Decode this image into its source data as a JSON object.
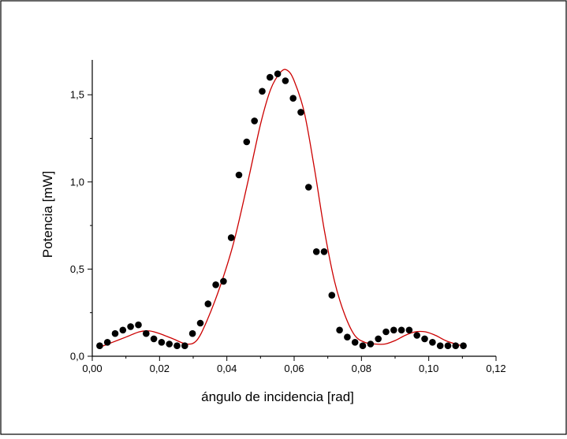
{
  "chart_data": {
    "type": "scatter",
    "title": "",
    "xlabel": "ángulo de incidencia [rad]",
    "ylabel": "Potencia [mW]",
    "xlim": [
      0,
      0.12
    ],
    "ylim": [
      0,
      1.7
    ],
    "x_ticks": [
      0.0,
      0.02,
      0.04,
      0.06,
      0.08,
      0.1,
      0.12
    ],
    "x_tick_labels": [
      "0,00",
      "0,02",
      "0,04",
      "0,06",
      "0,08",
      "0,10",
      "0,12"
    ],
    "y_ticks": [
      0.0,
      0.5,
      1.0,
      1.5
    ],
    "y_tick_labels": [
      "0,0",
      "0,5",
      "1,0",
      "1,5"
    ],
    "grid": false,
    "colors": {
      "points": "#000000",
      "fit": "#cc0000",
      "axes": "#000000"
    },
    "series": [
      {
        "kind": "points",
        "x": [
          0.0022,
          0.0045,
          0.0068,
          0.0091,
          0.0114,
          0.0137,
          0.016,
          0.0183,
          0.0206,
          0.0229,
          0.0252,
          0.0275,
          0.0298,
          0.0321,
          0.0344,
          0.0367,
          0.039,
          0.0413,
          0.0436,
          0.0459,
          0.0482,
          0.0505,
          0.0528,
          0.0551,
          0.0574,
          0.0597,
          0.062,
          0.0643,
          0.0666,
          0.0689,
          0.0712,
          0.0735,
          0.0758,
          0.0781,
          0.0804,
          0.0827,
          0.085,
          0.0873,
          0.0896,
          0.0919,
          0.0942,
          0.0965,
          0.0988,
          0.1011,
          0.1034,
          0.1057,
          0.108,
          0.1103
        ],
        "y": [
          0.06,
          0.08,
          0.13,
          0.15,
          0.17,
          0.18,
          0.13,
          0.1,
          0.08,
          0.07,
          0.06,
          0.06,
          0.13,
          0.19,
          0.3,
          0.41,
          0.43,
          0.68,
          1.04,
          1.23,
          1.35,
          1.52,
          1.6,
          1.62,
          1.58,
          1.48,
          1.4,
          0.97,
          0.6,
          0.6,
          0.35,
          0.15,
          0.11,
          0.08,
          0.06,
          0.07,
          0.1,
          0.14,
          0.15,
          0.15,
          0.15,
          0.12,
          0.1,
          0.08,
          0.06,
          0.06,
          0.06,
          0.06
        ]
      },
      {
        "kind": "fit",
        "x": [
          0.002,
          0.006,
          0.01,
          0.014,
          0.017,
          0.02,
          0.024,
          0.028,
          0.031,
          0.034,
          0.038,
          0.042,
          0.046,
          0.05,
          0.053,
          0.056,
          0.058,
          0.06,
          0.063,
          0.066,
          0.069,
          0.072,
          0.075,
          0.078,
          0.081,
          0.084,
          0.087,
          0.09,
          0.093,
          0.096,
          0.099,
          0.102,
          0.105,
          0.108,
          0.11
        ],
        "y": [
          0.05,
          0.08,
          0.11,
          0.14,
          0.145,
          0.13,
          0.1,
          0.07,
          0.09,
          0.2,
          0.4,
          0.65,
          0.98,
          1.33,
          1.53,
          1.63,
          1.64,
          1.58,
          1.4,
          1.08,
          0.72,
          0.43,
          0.24,
          0.12,
          0.08,
          0.07,
          0.07,
          0.09,
          0.12,
          0.14,
          0.14,
          0.12,
          0.09,
          0.07,
          0.06
        ]
      }
    ]
  }
}
